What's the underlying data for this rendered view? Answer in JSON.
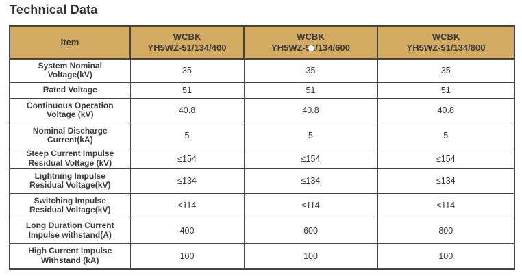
{
  "page": {
    "title": "Technical Data"
  },
  "colors": {
    "header_bg": "#d4ab63",
    "border": "#454545",
    "heading_text": "#3a3a3a",
    "value_text": "#333333",
    "title_text": "#303030"
  },
  "table": {
    "columns": [
      {
        "lines": [
          "Item"
        ]
      },
      {
        "lines": [
          "WCBK",
          "YH5WZ-51/134/400"
        ]
      },
      {
        "lines": [
          "WCBK",
          "YH5WZ-51/134/600"
        ]
      },
      {
        "lines": [
          "WCBK",
          "YH5WZ-51/134/800"
        ]
      }
    ],
    "rows": [
      {
        "item_lines": [
          "System Nominal",
          "Voltage(kV)"
        ],
        "values": [
          "35",
          "35",
          "35"
        ]
      },
      {
        "item_lines": [
          "Rated Voltage"
        ],
        "values": [
          "51",
          "51",
          "51"
        ]
      },
      {
        "item_lines": [
          "Continuous Operation",
          "Voltage (kV)"
        ],
        "values": [
          "40.8",
          "40.8",
          "40.8"
        ]
      },
      {
        "item_lines": [
          "Nominal Discharge",
          "Current(kA)"
        ],
        "values": [
          "5",
          "5",
          "5"
        ]
      },
      {
        "item_lines": [
          "Steep Current Impulse",
          "Residual Voltage (kV)"
        ],
        "values": [
          "≤154",
          "≤154",
          "≤154"
        ]
      },
      {
        "item_lines": [
          "Lightning Impulse",
          "Residual Voltage(kV)"
        ],
        "values": [
          "≤134",
          "≤134",
          "≤134"
        ]
      },
      {
        "item_lines": [
          "Switching Impulse",
          "Residual Voltage(kV)"
        ],
        "values": [
          "≤114",
          "≤114",
          "≤114"
        ]
      },
      {
        "item_lines": [
          "Long Duration Current",
          "Impulse withstand(A)"
        ],
        "values": [
          "400",
          "600",
          "800"
        ]
      },
      {
        "item_lines": [
          "High Current Impulse",
          "Withstand (kA)"
        ],
        "values": [
          "100",
          "100",
          "100"
        ]
      }
    ]
  }
}
